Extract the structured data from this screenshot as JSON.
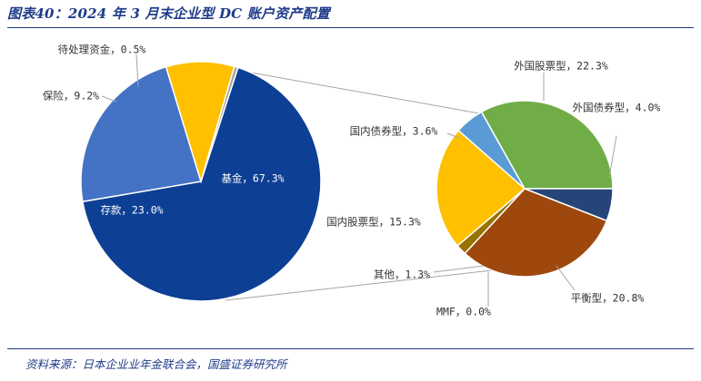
{
  "title": "图表40：2024 年 3 月末企业型 DC 账户资产配置",
  "source": "资料来源：日本企业业年金联合会，国盛证券研究所",
  "chart_data": [
    {
      "type": "pie",
      "name": "main",
      "slices": [
        {
          "label": "基金",
          "value": 67.3,
          "color": "#0d3f94",
          "text": "基金, 67.3%"
        },
        {
          "label": "存款",
          "value": 23.0,
          "color": "#4472c4",
          "text": "存款, 23.0%"
        },
        {
          "label": "保险",
          "value": 9.2,
          "color": "#ffc000",
          "text": "保险, 9.2%"
        },
        {
          "label": "待处理资金",
          "value": 0.5,
          "color": "#a5a5a5",
          "text": "待处理资金, 0.5%"
        }
      ]
    },
    {
      "type": "pie",
      "name": "fund-breakdown",
      "slices": [
        {
          "label": "外国股票型",
          "value": 22.3,
          "color": "#70ad47",
          "text": "外国股票型, 22.3%"
        },
        {
          "label": "外国债券型",
          "value": 4.0,
          "color": "#264478",
          "text": "外国债券型, 4.0%"
        },
        {
          "label": "平衡型",
          "value": 20.8,
          "color": "#9e480e",
          "text": "平衡型, 20.8%"
        },
        {
          "label": "MMF",
          "value": 0.0,
          "color": "#7f7f7f",
          "text": "MMF, 0.0%"
        },
        {
          "label": "其他",
          "value": 1.3,
          "color": "#997300",
          "text": "其他, 1.3%"
        },
        {
          "label": "国内股票型",
          "value": 15.3,
          "color": "#ffc000",
          "text": "国内股票型, 15.3%"
        },
        {
          "label": "国内债券型",
          "value": 3.6,
          "color": "#5b9bd5",
          "text": "国内债券型, 3.6%"
        }
      ]
    }
  ]
}
